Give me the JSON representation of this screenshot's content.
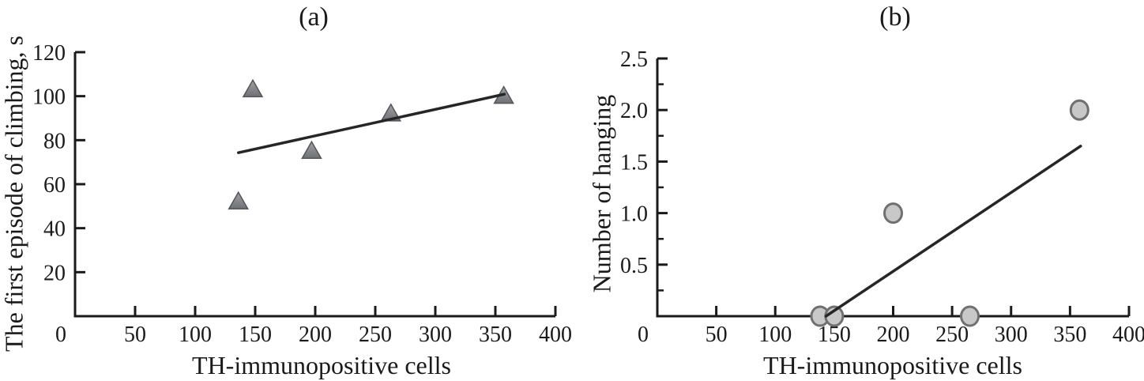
{
  "figure_colors": {
    "axis": "#1a1a1a",
    "trend_line": "#262626",
    "triangle_fill_top": "#a0a2a6",
    "triangle_fill_bottom": "#6e7074",
    "triangle_stroke": "#53555a",
    "circle_fill": "#c8c8c8",
    "circle_stroke": "#707070",
    "background": "#ffffff"
  },
  "chart_data": [
    {
      "id": "a",
      "type": "scatter",
      "title": "(a)",
      "xlabel": "TH-immunopositive cells",
      "ylabel": "The first episode of climbing, s",
      "marker": "triangle",
      "xlim": [
        0,
        400
      ],
      "ylim": [
        0,
        120
      ],
      "grid": false,
      "legend": "none",
      "x_ticks": [
        {
          "v": 0,
          "label": "0"
        },
        {
          "v": 50,
          "label": "50"
        },
        {
          "v": 100,
          "label": "100"
        },
        {
          "v": 150,
          "label": "150"
        },
        {
          "v": 200,
          "label": "200"
        },
        {
          "v": 250,
          "label": "250"
        },
        {
          "v": 300,
          "label": "300"
        },
        {
          "v": 350,
          "label": "350"
        },
        {
          "v": 400,
          "label": "400"
        }
      ],
      "y_ticks": [
        {
          "v": 20,
          "label": "20"
        },
        {
          "v": 40,
          "label": "40"
        },
        {
          "v": 60,
          "label": "60"
        },
        {
          "v": 80,
          "label": "80"
        },
        {
          "v": 100,
          "label": "100"
        },
        {
          "v": 120,
          "label": "120"
        }
      ],
      "y_minor_ticks": [],
      "points": [
        {
          "x": 136,
          "y": 52
        },
        {
          "x": 148,
          "y": 103
        },
        {
          "x": 197,
          "y": 75
        },
        {
          "x": 263,
          "y": 92
        },
        {
          "x": 357,
          "y": 100
        }
      ],
      "trend": {
        "x1": 136,
        "y1": 74.3,
        "x2": 357.5,
        "y2": 100.9
      }
    },
    {
      "id": "b",
      "type": "scatter",
      "title": "(b)",
      "xlabel": "TH-immunopositive cells",
      "ylabel": "Number of hanging",
      "marker": "circle",
      "xlim": [
        0,
        400
      ],
      "ylim": [
        0,
        2.5
      ],
      "grid": false,
      "legend": "none",
      "x_ticks": [
        {
          "v": 0,
          "label": "0"
        },
        {
          "v": 50,
          "label": "50"
        },
        {
          "v": 100,
          "label": "100"
        },
        {
          "v": 150,
          "label": "150"
        },
        {
          "v": 200,
          "label": "200"
        },
        {
          "v": 250,
          "label": "250"
        },
        {
          "v": 300,
          "label": "300"
        },
        {
          "v": 350,
          "label": "350"
        },
        {
          "v": 400,
          "label": "400"
        }
      ],
      "y_ticks": [
        {
          "v": 0.5,
          "label": "0.5"
        },
        {
          "v": 1.0,
          "label": "1.0"
        },
        {
          "v": 1.5,
          "label": "1.5"
        },
        {
          "v": 2.0,
          "label": "2.0"
        },
        {
          "v": 2.5,
          "label": "2.5"
        }
      ],
      "y_minor_ticks": [
        0.25,
        0.75,
        1.25,
        1.75,
        2.25
      ],
      "points": [
        {
          "x": 138,
          "y": 0
        },
        {
          "x": 150,
          "y": 0
        },
        {
          "x": 200,
          "y": 1.0
        },
        {
          "x": 265,
          "y": 0
        },
        {
          "x": 358,
          "y": 2.0
        }
      ],
      "trend": {
        "x1": 143,
        "y1": 0,
        "x2": 359,
        "y2": 1.65
      }
    }
  ]
}
